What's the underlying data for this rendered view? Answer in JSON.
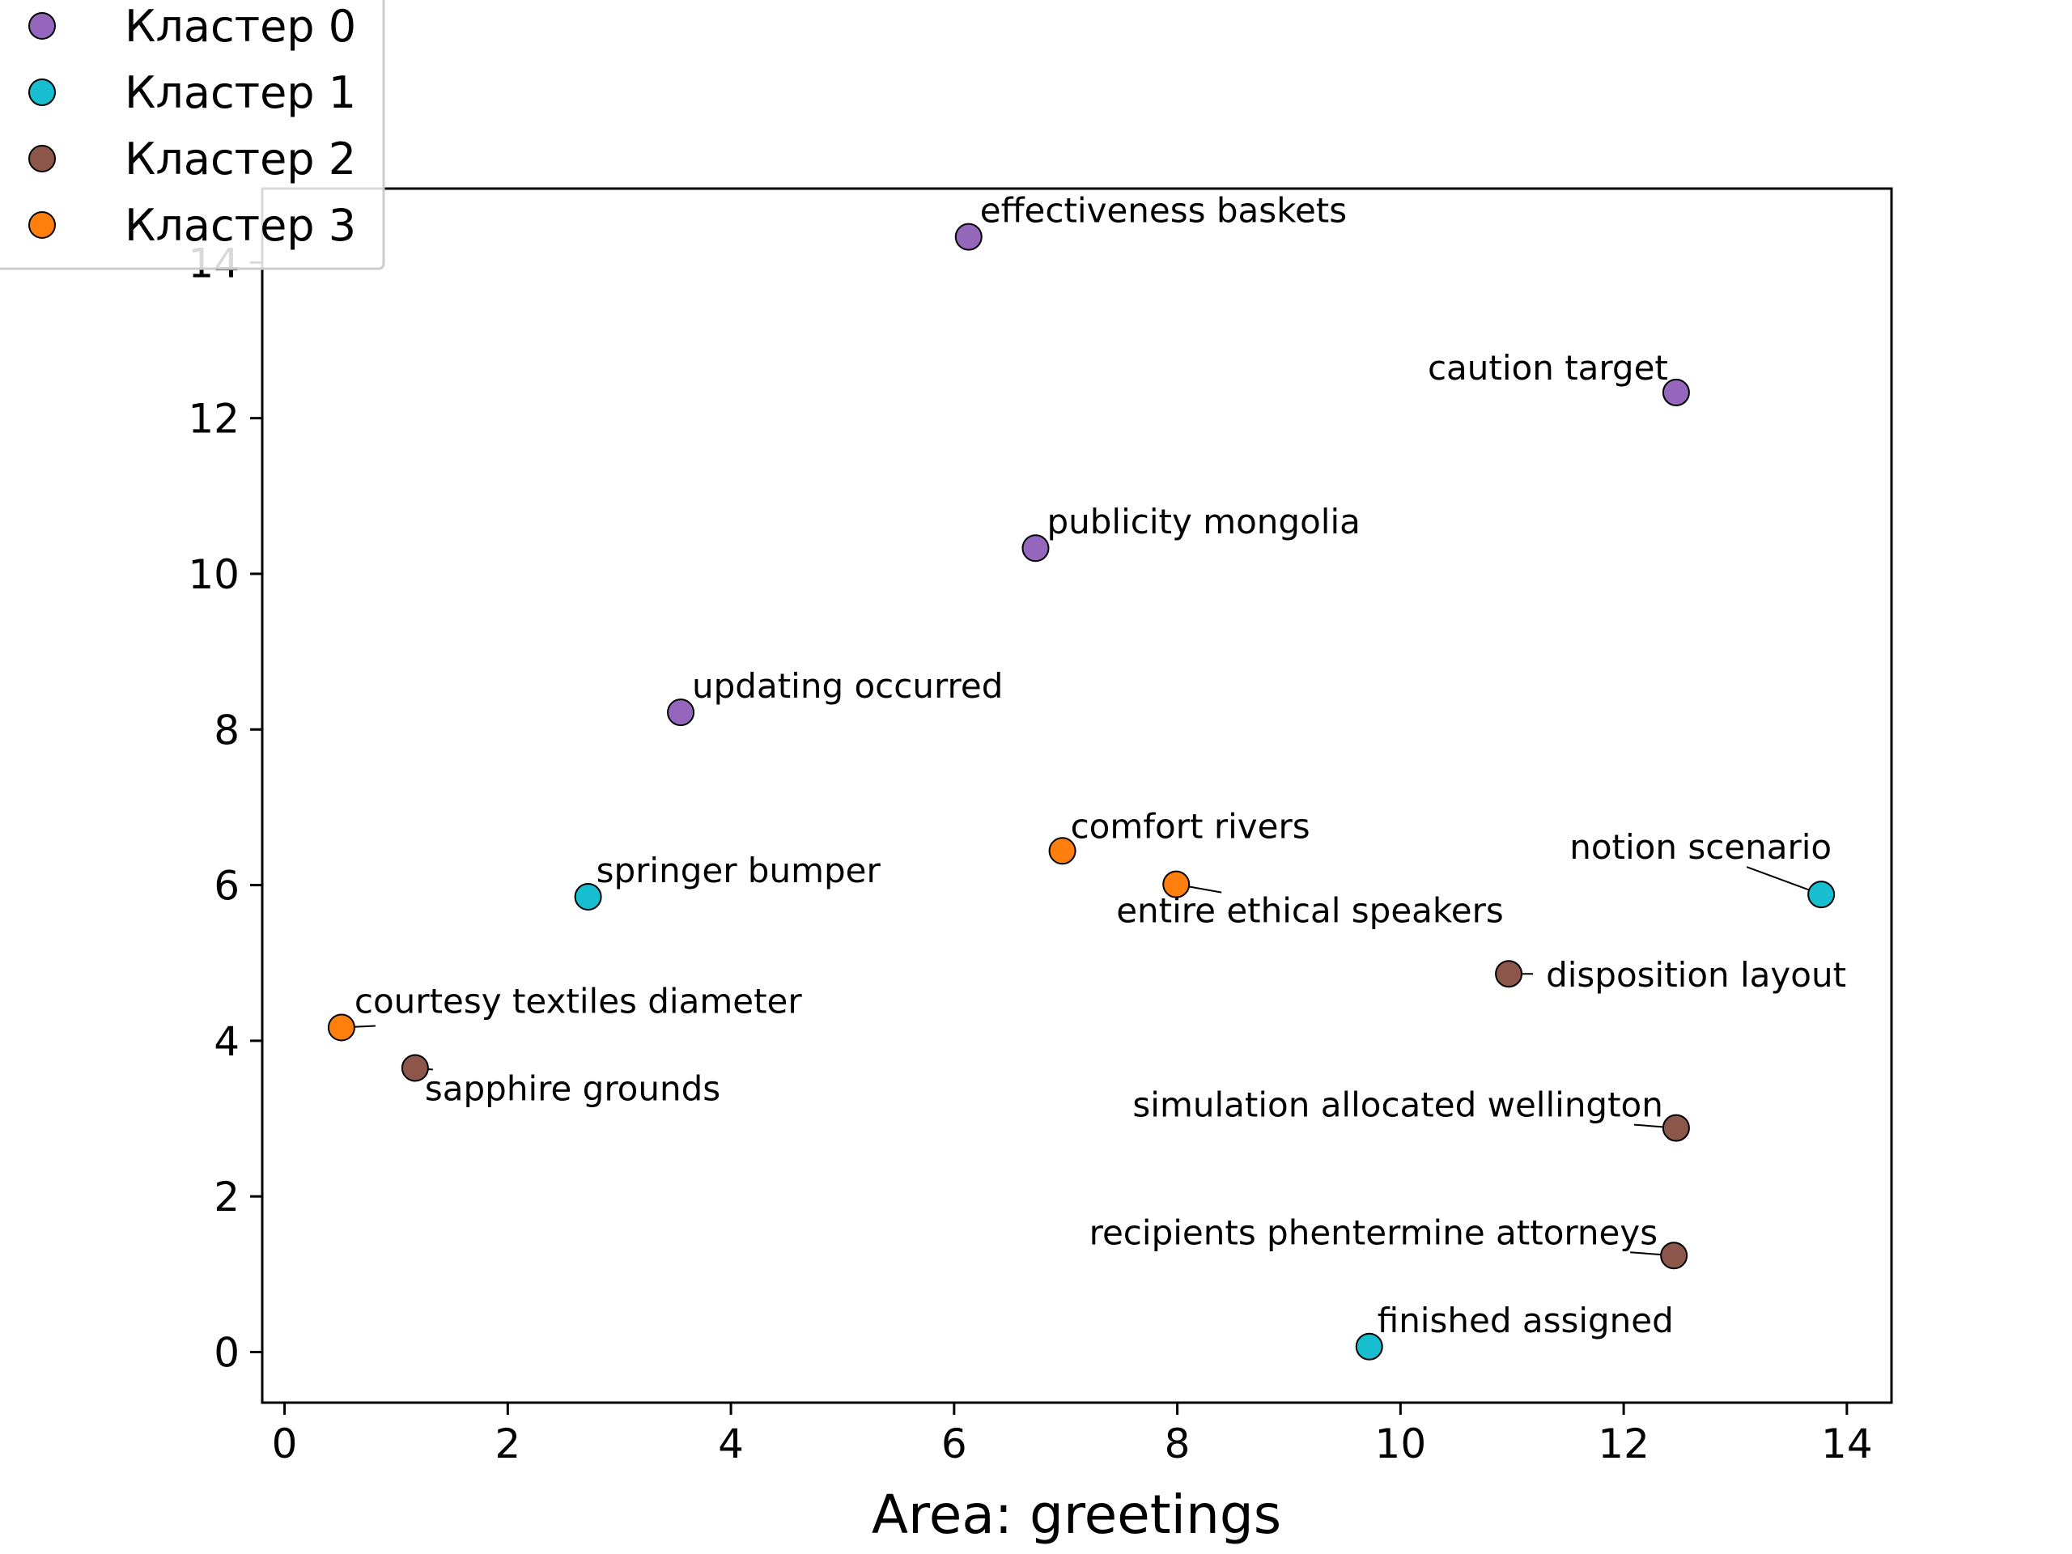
{
  "chart_data": {
    "type": "scatter",
    "title": "",
    "xlabel": "Area: greetings",
    "ylabel": "",
    "xlim": [
      -0.2,
      14.4
    ],
    "ylim": [
      -0.65,
      14.95
    ],
    "xticks": [
      0,
      2,
      4,
      6,
      8,
      10,
      12,
      14
    ],
    "yticks": [
      0,
      2,
      4,
      6,
      8,
      10,
      12,
      14
    ],
    "grid": false,
    "legend_position": "top-left",
    "series": [
      {
        "name": "Кластер 0",
        "color": "#9467bd",
        "points": [
          {
            "label": "effectiveness baskets",
            "x": 6.13,
            "y": 14.33
          },
          {
            "label": "caution target",
            "x": 12.47,
            "y": 12.33
          },
          {
            "label": "publicity mongolia",
            "x": 6.73,
            "y": 10.33
          },
          {
            "label": "updating occurred",
            "x": 3.55,
            "y": 8.22
          }
        ]
      },
      {
        "name": "Кластер 1",
        "color": "#17becf",
        "points": [
          {
            "label": "springer bumper",
            "x": 2.72,
            "y": 5.85
          },
          {
            "label": "notion scenario",
            "x": 13.77,
            "y": 5.88
          },
          {
            "label": "finished assigned",
            "x": 9.72,
            "y": 0.07
          }
        ]
      },
      {
        "name": "Кластер 2",
        "color": "#8c564b",
        "points": [
          {
            "label": "disposition layout",
            "x": 10.97,
            "y": 4.86
          },
          {
            "label": "sapphire grounds",
            "x": 1.17,
            "y": 3.65
          },
          {
            "label": "simulation allocated wellington",
            "x": 12.47,
            "y": 2.88
          },
          {
            "label": "recipients phentermine attorneys",
            "x": 12.45,
            "y": 1.24
          }
        ]
      },
      {
        "name": "Кластер 3",
        "color": "#ff7f0e",
        "points": [
          {
            "label": "comfort rivers",
            "x": 6.97,
            "y": 6.44
          },
          {
            "label": "entire ethical speakers",
            "x": 7.99,
            "y": 6.01
          },
          {
            "label": "courtesy textiles diameter",
            "x": 0.51,
            "y": 4.17
          }
        ]
      }
    ]
  }
}
